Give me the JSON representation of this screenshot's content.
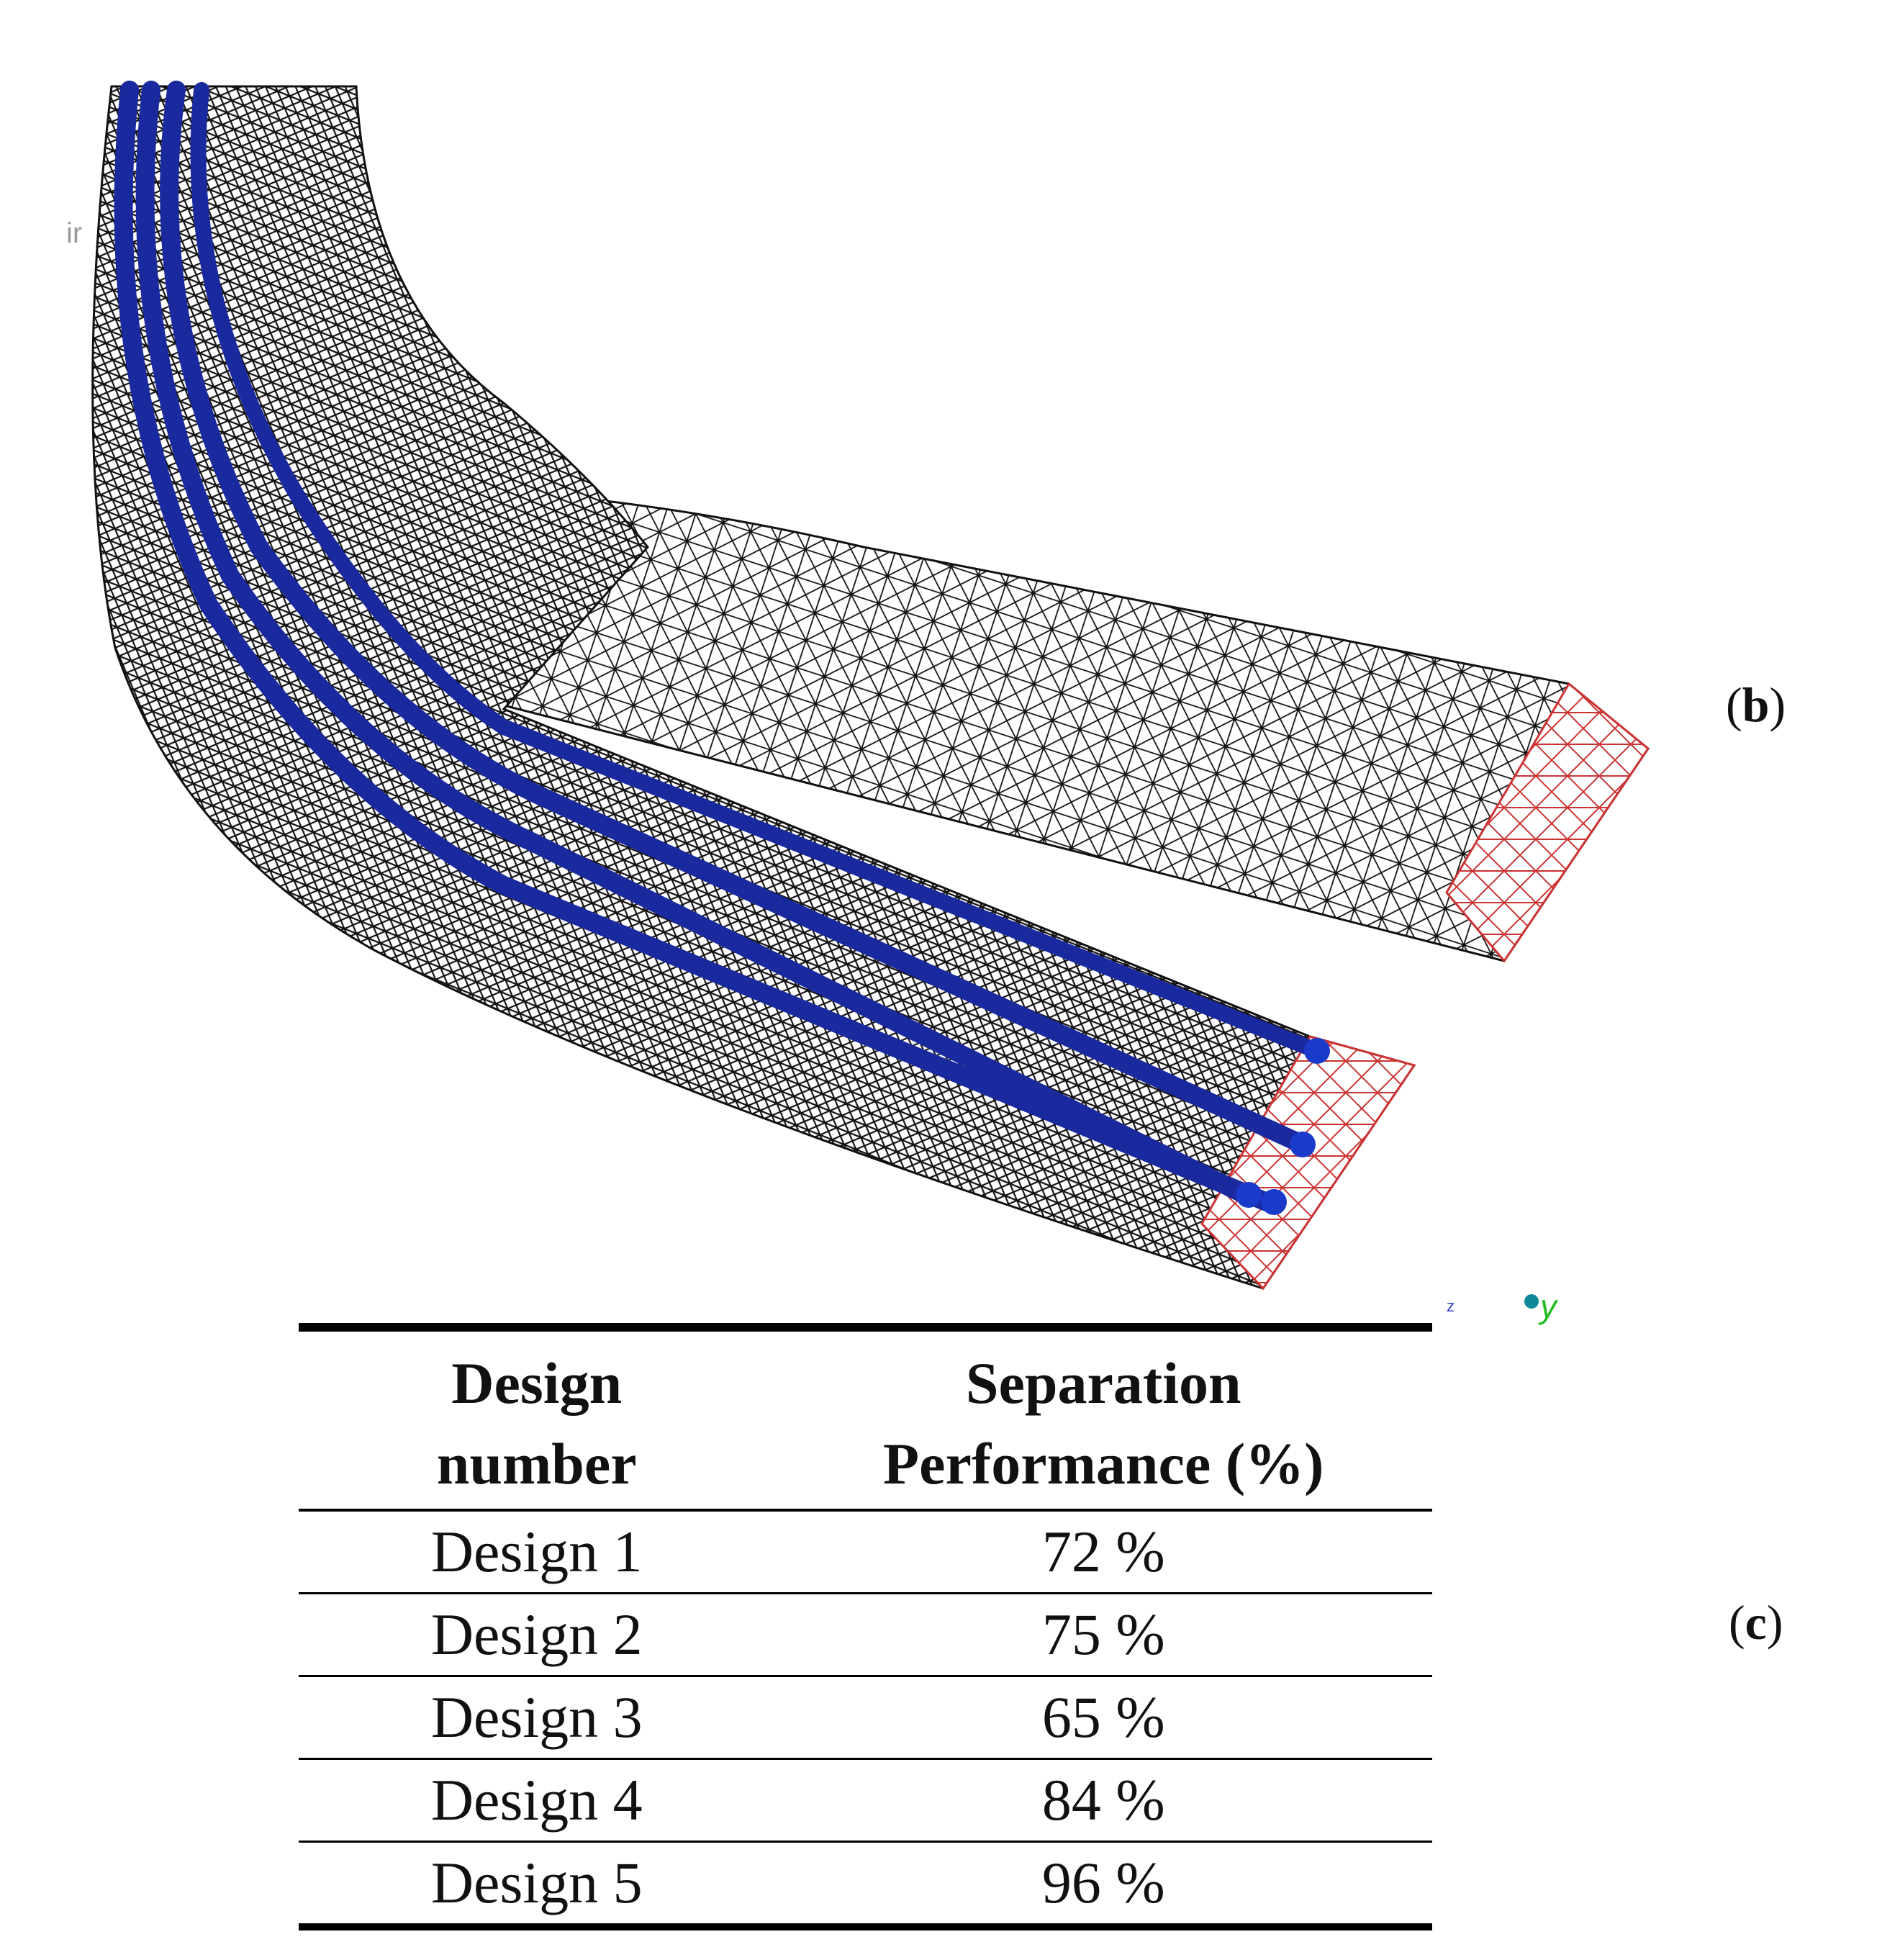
{
  "figure": {
    "panel_b_label": "b",
    "panel_c_label": "c",
    "axis_z": "z",
    "axis_y": "y",
    "cut_text": "ir",
    "colors": {
      "mesh": "#111111",
      "outlet_mesh": "#cc3333",
      "particle": "#1a2a9e"
    }
  },
  "table": {
    "headers": [
      "Design number",
      "Separation Performance (%)"
    ],
    "header_lines": [
      [
        "Design",
        "number"
      ],
      [
        "Separation",
        "Performance (%)"
      ]
    ],
    "rows": [
      [
        "Design 1",
        "72 %"
      ],
      [
        "Design 2",
        "75 %"
      ],
      [
        "Design 3",
        "65 %"
      ],
      [
        "Design 4",
        "84 %"
      ],
      [
        "Design 5",
        "96 %"
      ]
    ]
  }
}
